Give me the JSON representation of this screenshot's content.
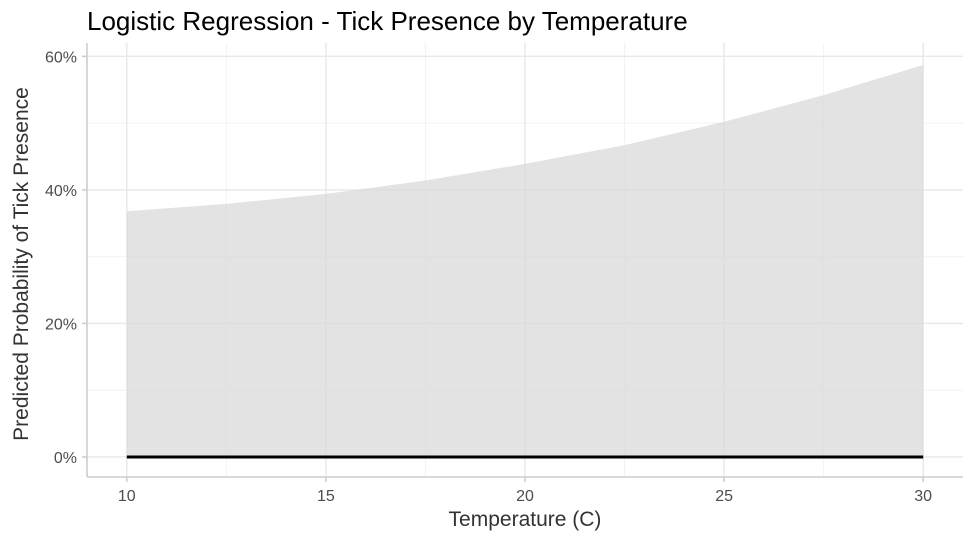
{
  "chart_data": {
    "type": "area",
    "title": "Logistic Regression - Tick Presence by Temperature",
    "xlabel": "Temperature (C)",
    "ylabel": "Predicted Probability of Tick Presence",
    "xlim": [
      9,
      31
    ],
    "ylim": [
      -0.03,
      0.62
    ],
    "x_ticks": [
      10,
      15,
      20,
      25,
      30
    ],
    "x_tick_labels": [
      "10",
      "15",
      "20",
      "25",
      "30"
    ],
    "y_ticks": [
      0,
      0.2,
      0.4,
      0.6
    ],
    "y_tick_labels": [
      "0%",
      "20%",
      "40%",
      "60%"
    ],
    "grid": true,
    "legend": "none",
    "x": [
      10,
      12.5,
      15,
      17.5,
      20,
      22.5,
      25,
      27.5,
      30
    ],
    "series": [
      {
        "values": [
          0.368,
          0.379,
          0.394,
          0.414,
          0.439,
          0.467,
          0.502,
          0.542,
          0.587
        ],
        "fill_color": "#d9d9d9"
      },
      {
        "values": [
          0,
          0,
          0,
          0,
          0,
          0,
          0,
          0,
          0
        ],
        "line_color": "#000000"
      }
    ]
  }
}
